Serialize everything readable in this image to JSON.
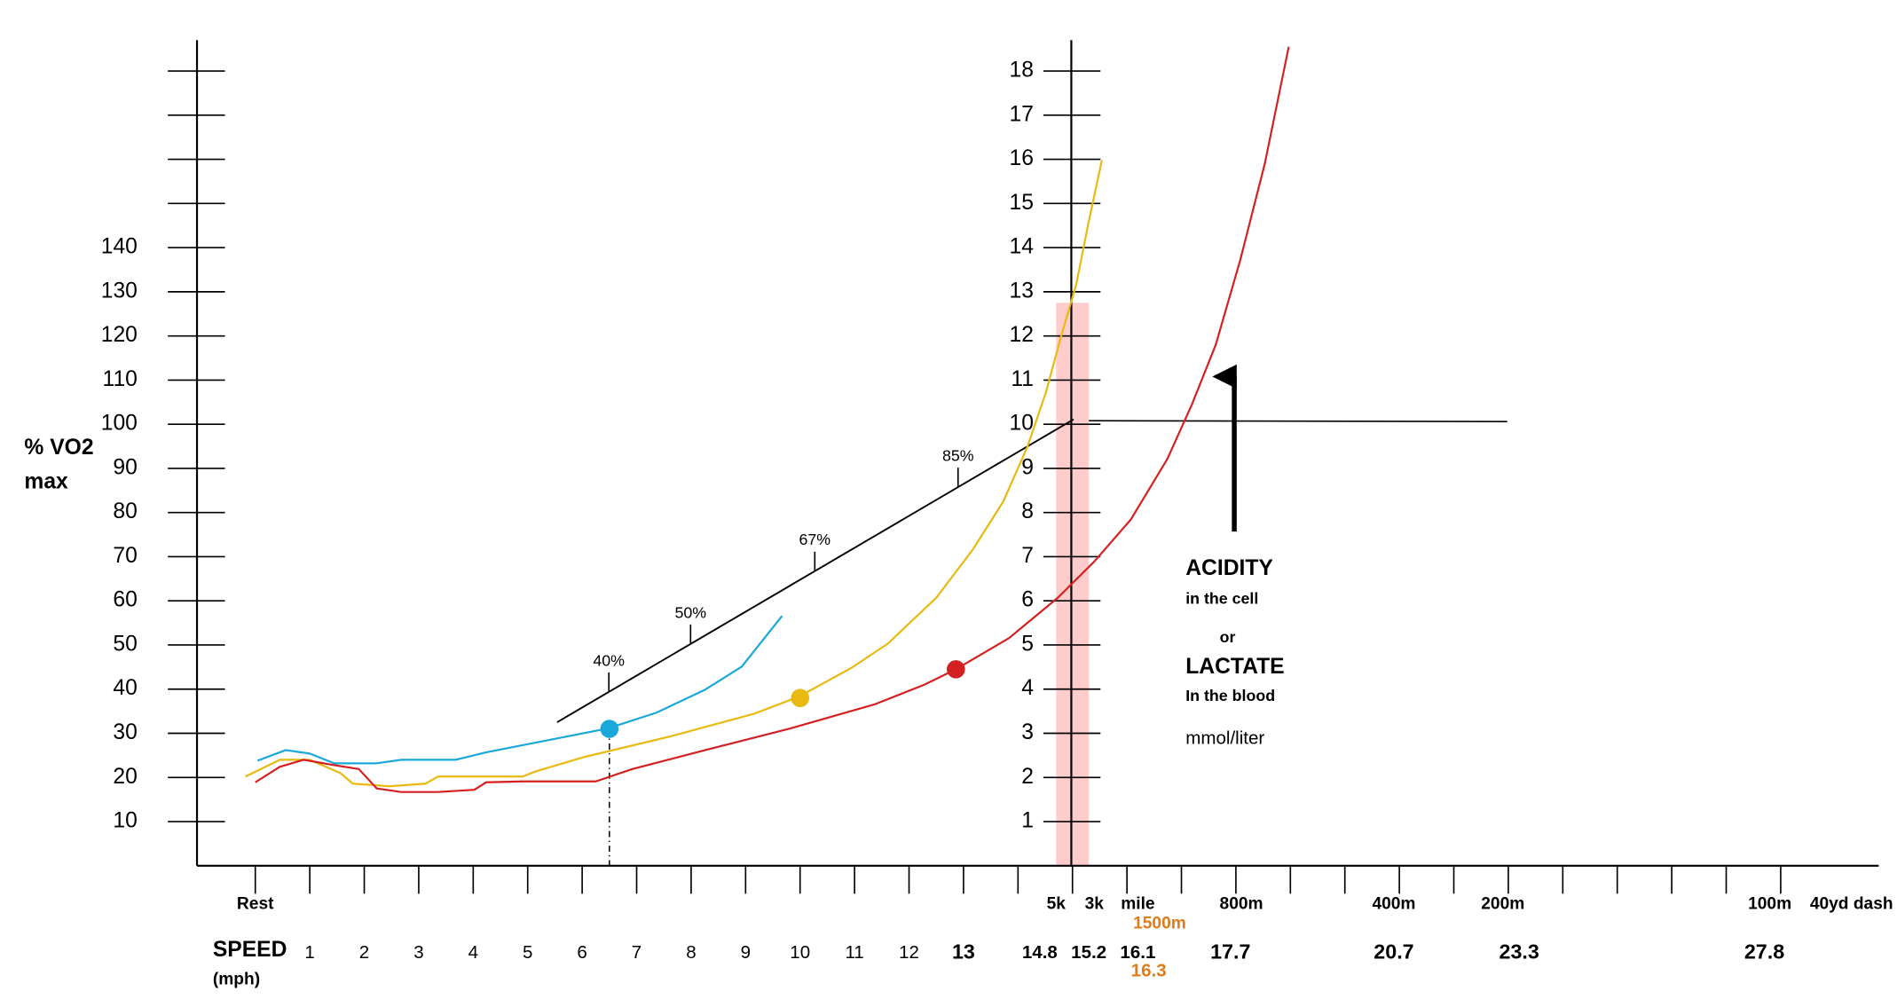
{
  "chart_data": {
    "type": "line",
    "ylabel": [
      "% VO2",
      "max"
    ],
    "y2label": [
      "ACIDITY",
      "in the cell",
      "or",
      "LACTATE",
      "In the blood",
      "mmol/liter"
    ],
    "xlabel": [
      "SPEED",
      "(mph)"
    ],
    "xlim": [
      -1.07,
      29.8
    ],
    "xticks": [
      0,
      1,
      2,
      3,
      4,
      5,
      6,
      7,
      8,
      9,
      10,
      11,
      12,
      13,
      14,
      15,
      16,
      17,
      18,
      19,
      20,
      21,
      22,
      23,
      24,
      25,
      26,
      27,
      28
    ],
    "ylim": [
      0,
      187
    ],
    "yticks": [
      10,
      20,
      30,
      40,
      50,
      60,
      70,
      80,
      90,
      100,
      110,
      120,
      130,
      140
    ],
    "yticks_minor": [
      150,
      160,
      170,
      180
    ],
    "y2lim": [
      0,
      18.7
    ],
    "y2ticks": [
      1,
      2,
      3,
      4,
      5,
      6,
      7,
      8,
      9,
      10,
      11,
      12,
      13,
      14,
      15,
      16,
      17,
      18
    ],
    "speed_labels": {
      "x": [
        1,
        2,
        3,
        4,
        5,
        6,
        7,
        8,
        9,
        10,
        11,
        12,
        13,
        14.4,
        15.3,
        16.2,
        17.9,
        20.9,
        23.2,
        27.7
      ],
      "values": [
        1,
        2,
        3,
        4,
        5,
        6,
        7,
        8,
        9,
        10,
        11,
        12,
        13,
        14.8,
        15.2,
        16.1,
        17.7,
        20.7,
        23.3,
        27.8
      ]
    },
    "distance_labels": {
      "x": [
        0,
        14.7,
        15.4,
        16.2,
        18.1,
        20.9,
        22.9,
        27.8,
        29.3
      ],
      "labels": [
        "Rest",
        "5k",
        "3k",
        "mile",
        "800m",
        "400m",
        "200m",
        "100m",
        "40yd dash"
      ]
    },
    "orange_distance": {
      "label": "1500m",
      "x": 16.6
    },
    "orange_speed": {
      "value": 16.3,
      "x": 16.4
    },
    "orange_color": "#e07b1a",
    "threshold_line": {
      "x": [
        5.54,
        15.02
      ],
      "values": [
        3.25,
        10.11
      ]
    },
    "thresholds": {
      "x": [
        6.49,
        7.99,
        10.27,
        12.9
      ],
      "values": [
        40,
        50,
        67,
        85
      ],
      "value_labels": [
        "40%",
        "50%",
        "67%",
        "85%"
      ]
    },
    "reference_line": {
      "x": [
        15.3,
        22.98
      ],
      "values": [
        10.08,
        10.06
      ]
    },
    "band": {
      "x": [
        14.7,
        15.3
      ],
      "values": [
        0,
        12.75
      ],
      "color": "#ffcccc"
    },
    "arrow": {
      "x": 17.97,
      "values": [
        7.57,
        11.3
      ]
    },
    "series": [
      {
        "color": "#1aa7d9",
        "axis": "y2",
        "x": [
          0.04,
          0.56,
          1.0,
          1.45,
          2.23,
          2.68,
          3.68,
          4.24,
          5.36,
          6.47,
          7.37,
          8.26,
          8.93,
          9.67
        ],
        "values": [
          2.38,
          2.62,
          2.54,
          2.32,
          2.32,
          2.4,
          2.4,
          2.57,
          2.84,
          3.11,
          3.47,
          3.99,
          4.51,
          5.66
        ],
        "marker": {
          "x": 6.5,
          "value": 3.1
        }
      },
      {
        "color": "#e8b90e",
        "axis": "y2",
        "x": [
          -0.18,
          0.45,
          1.0,
          1.56,
          1.79,
          2.46,
          3.13,
          3.35,
          4.91,
          5.13,
          6.03,
          7.59,
          9.15,
          9.98,
          10.94,
          11.61,
          12.5,
          13.17,
          13.73,
          14.17,
          14.51,
          14.78,
          15.07,
          15.29,
          15.54
        ],
        "values": [
          2.02,
          2.4,
          2.4,
          2.1,
          1.86,
          1.8,
          1.86,
          2.02,
          2.02,
          2.13,
          2.46,
          2.92,
          3.44,
          3.83,
          4.48,
          5.03,
          6.07,
          7.16,
          8.25,
          9.48,
          10.71,
          11.94,
          13.17,
          14.54,
          15.98
        ],
        "marker": {
          "x": 10,
          "value": 3.8
        }
      },
      {
        "color": "#d42020",
        "axis": "y2",
        "x": [
          0,
          0.45,
          0.89,
          1.34,
          1.9,
          2.23,
          2.68,
          3.35,
          4.02,
          4.24,
          4.91,
          6.25,
          6.92,
          8.26,
          9.82,
          11.38,
          12.28,
          12.86,
          13.84,
          14.73,
          15.4,
          16.07,
          16.74,
          17.19,
          17.63,
          18.08,
          18.53,
          18.97
        ],
        "values": [
          1.89,
          2.24,
          2.4,
          2.3,
          2.19,
          1.75,
          1.67,
          1.67,
          1.72,
          1.89,
          1.91,
          1.91,
          2.19,
          2.62,
          3.11,
          3.66,
          4.1,
          4.45,
          5.16,
          6.07,
          6.89,
          7.84,
          9.21,
          10.44,
          11.8,
          13.72,
          15.9,
          18.55
        ],
        "marker": {
          "x": 12.86,
          "value": 4.45
        }
      }
    ]
  }
}
